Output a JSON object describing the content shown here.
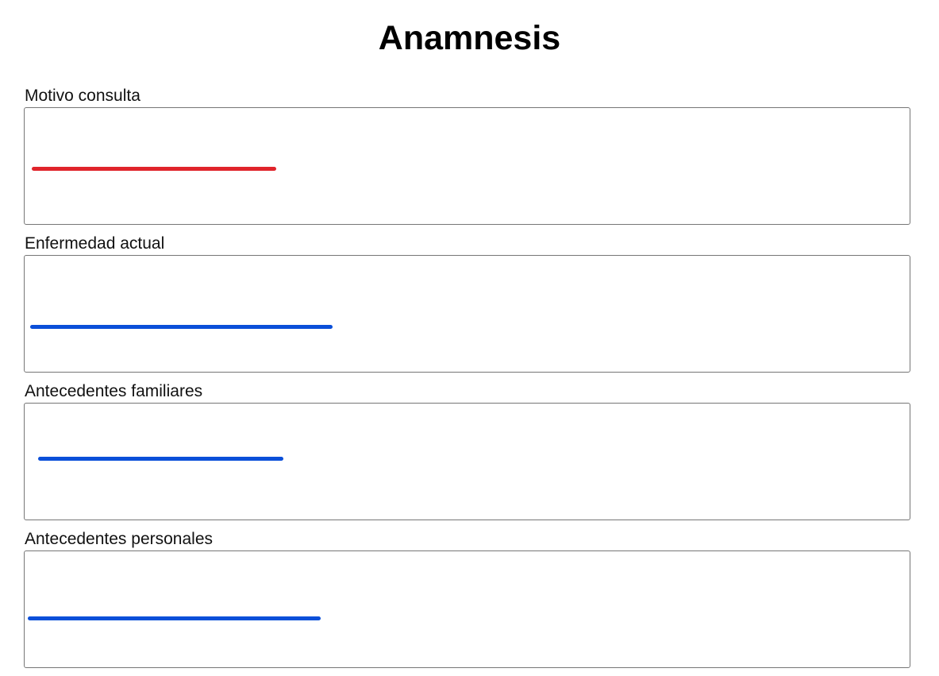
{
  "page": {
    "title": "Anamnesis"
  },
  "fields": [
    {
      "label": "Motivo consulta",
      "stroke_color": "#e0242b"
    },
    {
      "label": "Enfermedad actual",
      "stroke_color": "#0b4fd9"
    },
    {
      "label": "Antecedentes familiares",
      "stroke_color": "#0b4fd9"
    },
    {
      "label": "Antecedentes personales",
      "stroke_color": "#0b4fd9"
    }
  ]
}
